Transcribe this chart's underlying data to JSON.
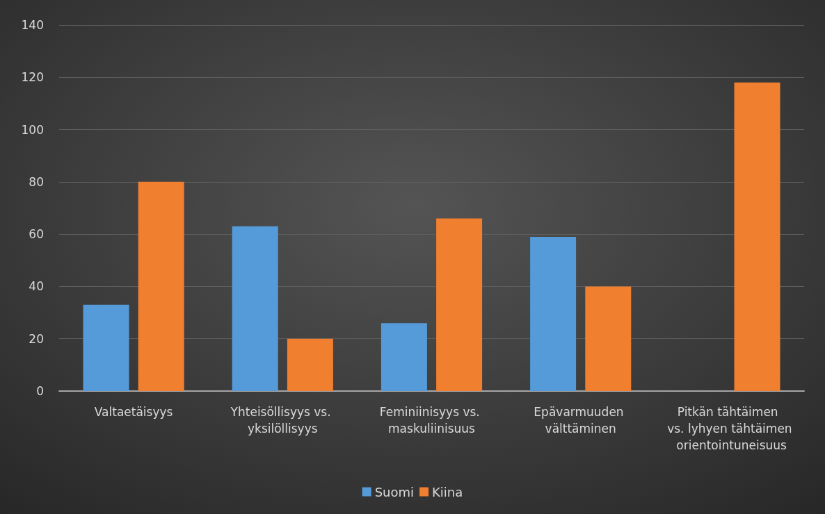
{
  "chart_data": {
    "type": "bar",
    "categories": [
      "Valtaetäisyys",
      "Yhteisöllisyys vs. yksilöllisyys",
      "Feminiinisyys vs. maskuliinisuus",
      "Epävarmuuden välttäminen",
      "Pitkän tähtäimen vs. lyhyen tähtäimen orientointuneisuus"
    ],
    "series": [
      {
        "name": "Suomi",
        "color": "#559bd9",
        "values": [
          33,
          63,
          26,
          59,
          null
        ]
      },
      {
        "name": "Kiina",
        "color": "#f07f2f",
        "values": [
          80,
          20,
          66,
          40,
          118
        ]
      }
    ],
    "ylim": [
      0,
      140
    ],
    "yticks": [
      0,
      20,
      40,
      60,
      80,
      100,
      120,
      140
    ],
    "grid": "y",
    "legend": "bottom"
  }
}
